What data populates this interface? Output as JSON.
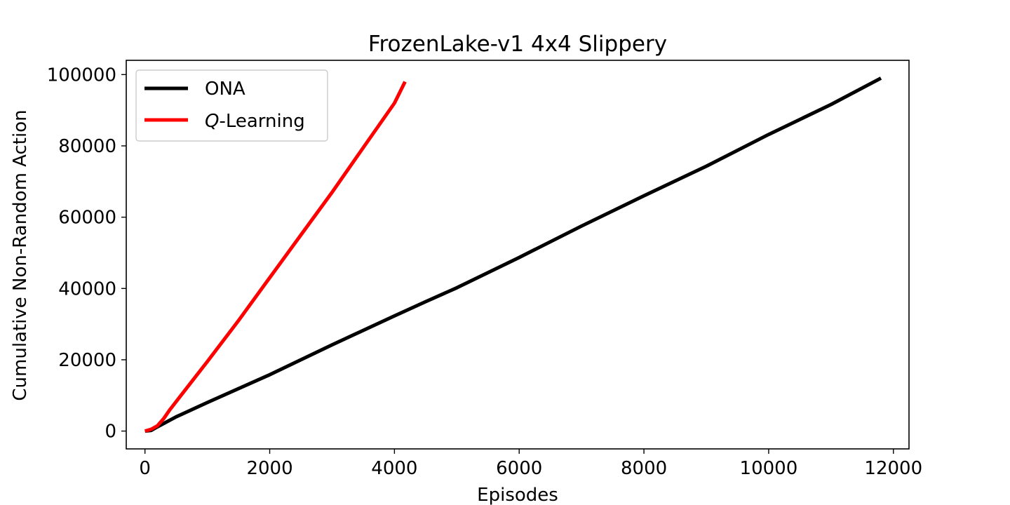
{
  "chart_data": {
    "type": "line",
    "title": "FrozenLake-v1 4x4 Slippery",
    "xlabel": "Episodes",
    "ylabel": "Cumulative Non-Random Action",
    "xlim": [
      -300,
      12250
    ],
    "ylim": [
      -5000,
      104000
    ],
    "xticks": [
      0,
      2000,
      4000,
      6000,
      8000,
      10000,
      12000
    ],
    "yticks": [
      0,
      20000,
      40000,
      60000,
      80000,
      100000
    ],
    "grid": false,
    "legend_position": "upper-left",
    "series": [
      {
        "name": "ONA",
        "color": "#000000",
        "x": [
          0,
          100,
          200,
          500,
          1000,
          2000,
          3000,
          4000,
          4500,
          5000,
          6000,
          7000,
          8000,
          9000,
          10000,
          11000,
          11800
        ],
        "y": [
          0,
          200,
          1200,
          4000,
          8000,
          15800,
          24200,
          32300,
          36300,
          40200,
          48700,
          57500,
          66000,
          74300,
          83200,
          91600,
          99000
        ]
      },
      {
        "name": "Q-Learning",
        "name_prefix": "Q",
        "name_suffix": "-Learning",
        "color": "#ff0000",
        "x": [
          0,
          100,
          200,
          300,
          400,
          600,
          800,
          1000,
          1500,
          2000,
          2500,
          3000,
          3500,
          4000,
          4170
        ],
        "y": [
          0,
          500,
          1500,
          3500,
          6000,
          10500,
          15000,
          19500,
          31000,
          43000,
          55000,
          67000,
          79500,
          92000,
          98000
        ]
      }
    ]
  }
}
